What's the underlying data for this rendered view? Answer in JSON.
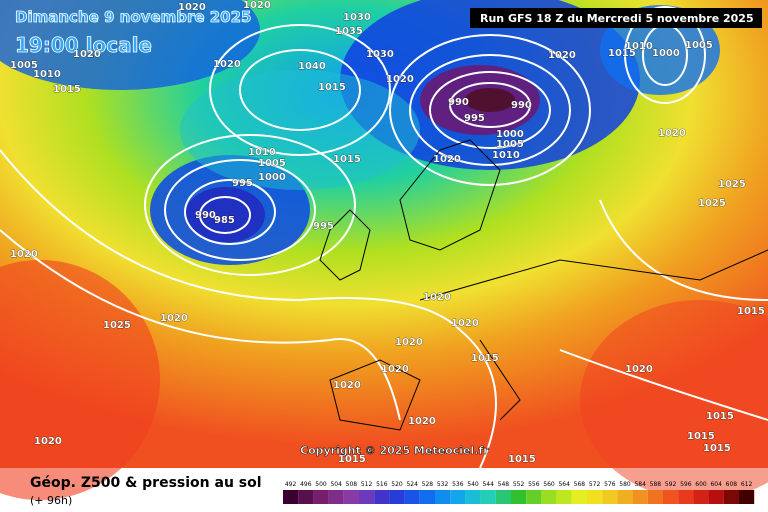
{
  "header": {
    "title": "Dimanche 9 novembre 2025",
    "time": "19:00 locale",
    "run": "Run GFS 18 Z du Mercredi 5 novembre 2025"
  },
  "copyright": "Copyright © 2025 Meteociel.fr",
  "legend": {
    "title": "Géop. Z500 & pression au sol",
    "lead": "(+ 96h)",
    "levels": [
      492,
      496,
      500,
      504,
      508,
      512,
      516,
      520,
      524,
      528,
      532,
      536,
      540,
      544,
      548,
      552,
      556,
      560,
      564,
      568,
      572,
      576,
      580,
      584,
      588,
      592,
      596,
      600,
      604,
      608,
      612
    ],
    "color_stops": [
      "#3a0030",
      "#7a2070",
      "#8a3fb0",
      "#3030d0",
      "#1060f0",
      "#10a0f0",
      "#20d0c0",
      "#30c030",
      "#a0e020",
      "#f0f020",
      "#f0c020",
      "#f08020",
      "#f04020",
      "#c01010",
      "#400000"
    ]
  },
  "isobar_labels": [
    1020,
    1020,
    1030,
    1035,
    1005,
    1010,
    1015,
    1020,
    1020,
    1040,
    1015,
    1030,
    1020,
    990,
    990,
    995,
    1000,
    1005,
    1010,
    1020,
    1015,
    1010,
    1000,
    1005,
    1020,
    1025,
    1025,
    1010,
    1005,
    1000,
    995,
    990,
    985,
    995,
    1015,
    1020,
    1020,
    1025,
    1020,
    1015,
    1020,
    1020,
    1020,
    1015,
    1020,
    1020,
    1020,
    1020,
    1015,
    1015,
    1015,
    1020,
    1015,
    1015
  ]
}
